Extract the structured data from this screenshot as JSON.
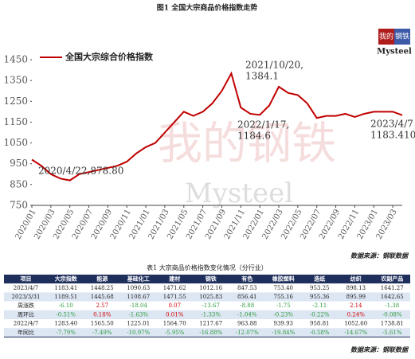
{
  "title": "图1 全国大宗商品价格指数走势",
  "logo": {
    "top": "我的",
    "middle": "钢铁",
    "bottom": "Mysteel"
  },
  "watermark": {
    "cn": "我的钢铁",
    "en": "Mysteel"
  },
  "chart_data": {
    "type": "line",
    "categories": [
      "2020/01",
      null,
      "2020/03",
      null,
      "2020/05",
      null,
      "2020/07",
      null,
      "2020/09",
      null,
      "2020/11",
      null,
      "2021/01",
      null,
      "2021/03",
      null,
      "2021/05",
      null,
      "2021/07",
      null,
      "2021/09",
      null,
      "2021/11",
      null,
      "2022/01",
      null,
      "2022/03",
      null,
      "2022/05",
      null,
      "2022/07",
      null,
      "2022/09",
      null,
      "2022/11",
      null,
      "2023/01",
      null,
      "2023/03",
      null
    ],
    "series": [
      {
        "name": "全国大宗综合价格指数",
        "color": "#c00000",
        "values": [
          970,
          940,
          900,
          878.8,
          870,
          900,
          910,
          920,
          930,
          940,
          960,
          1000,
          1030,
          1050,
          1100,
          1150,
          1200,
          1180,
          1200,
          1240,
          1300,
          1384.1,
          1220,
          1190,
          1184.6,
          1230,
          1320,
          1290,
          1280,
          1240,
          1170,
          1180,
          1180,
          1190,
          1175,
          1190,
          1200,
          1200,
          1200,
          1183.41
        ]
      }
    ],
    "ylim": [
      750,
      1450
    ],
    "yticks": [
      750,
      850,
      950,
      1050,
      1150,
      1250,
      1350,
      1450
    ],
    "legend": "upper left",
    "annotations": [
      {
        "lines": [
          "2020/4/22,878.80"
        ]
      },
      {
        "lines": [
          "2021/10/20,",
          "1384.1"
        ]
      },
      {
        "lines": [
          "2022/1/17,",
          "1184.6"
        ]
      },
      {
        "lines": [
          "2023/4/7",
          "1183.4103"
        ]
      }
    ],
    "source": "数据来源：钢联数据"
  },
  "table": {
    "title": "表1 大宗商品价格指数变化情况（分行业）",
    "header": [
      "项目",
      "大宗指数",
      "能源",
      "基础化工",
      "建材",
      "钢铁",
      "有色",
      "橡胶塑料",
      "造纸",
      "纺织",
      "农副产品"
    ],
    "rows": [
      [
        "2023/4/7",
        "1183.41",
        "1448.25",
        "1090.63",
        "1471.62",
        "1012.16",
        "847.53",
        "753.40",
        "953.25",
        "898.13",
        "1641.27"
      ],
      [
        "2023/3/31",
        "1189.51",
        "1445.68",
        "1108.67",
        "1471.55",
        "1025.83",
        "856.41",
        "755.16",
        "955.36",
        "895.99",
        "1642.65"
      ],
      [
        "周涨跌",
        "-6.10",
        "2.57",
        "-18.04",
        "0.07",
        "-13.67",
        "-8.88",
        "-1.75",
        "-2.11",
        "2.14",
        "-1.38"
      ],
      [
        "周环比",
        "-0.51%",
        "0.18%",
        "-1.63%",
        "0.01%",
        "-1.33%",
        "-1.04%",
        "-0.23%",
        "-0.22%",
        "0.24%",
        "-0.08%"
      ],
      [
        "2022/4/7",
        "1283.40",
        "1565.50",
        "1225.01",
        "1564.70",
        "1217.67",
        "963.88",
        "939.93",
        "958.81",
        "1052.60",
        "1738.81"
      ],
      [
        "年同比",
        "-7.79%",
        "-7.49%",
        "-10.97%",
        "-5.95%",
        "-16.88%",
        "-12.07%",
        "-19.84%",
        "-0.58%",
        "-14.67%",
        "-5.61%"
      ]
    ],
    "source": "数据来源：钢联数据"
  }
}
